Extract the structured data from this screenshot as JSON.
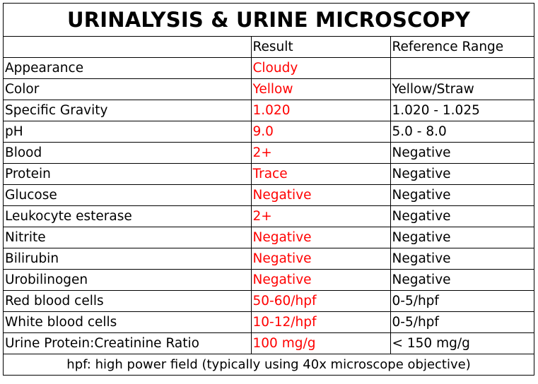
{
  "title": "URINALYSIS & URINE MICROSCOPY",
  "header": {
    "test": "",
    "result": "Result",
    "reference": "Reference Range"
  },
  "colors": {
    "result_text": "#ff0000",
    "text": "#000000",
    "border": "#000000",
    "background": "#ffffff"
  },
  "rows": [
    {
      "test": "Appearance",
      "result": "Cloudy",
      "reference": ""
    },
    {
      "test": "Color",
      "result": "Yellow",
      "reference": "Yellow/Straw"
    },
    {
      "test": "Specific Gravity",
      "result": "1.020",
      "reference": "1.020 - 1.025"
    },
    {
      "test": "pH",
      "result": "9.0",
      "reference": "5.0 - 8.0"
    },
    {
      "test": "Blood",
      "result": "2+",
      "reference": "Negative"
    },
    {
      "test": "Protein",
      "result": "Trace",
      "reference": "Negative"
    },
    {
      "test": "Glucose",
      "result": "Negative",
      "reference": "Negative"
    },
    {
      "test": "Leukocyte esterase",
      "result": "2+",
      "reference": "Negative"
    },
    {
      "test": "Nitrite",
      "result": "Negative",
      "reference": "Negative"
    },
    {
      "test": "Bilirubin",
      "result": "Negative",
      "reference": "Negative"
    },
    {
      "test": "Urobilinogen",
      "result": "Negative",
      "reference": "Negative"
    },
    {
      "test": "Red blood cells",
      "result": "50-60/hpf",
      "reference": "0-5/hpf"
    },
    {
      "test": "White blood cells",
      "result": "10-12/hpf",
      "reference": "0-5/hpf"
    },
    {
      "test": "Urine Protein:Creatinine Ratio",
      "result": "100 mg/g",
      "reference": "< 150 mg/g"
    }
  ],
  "footer": "hpf: high power field (typically using 40x microscope objective)"
}
